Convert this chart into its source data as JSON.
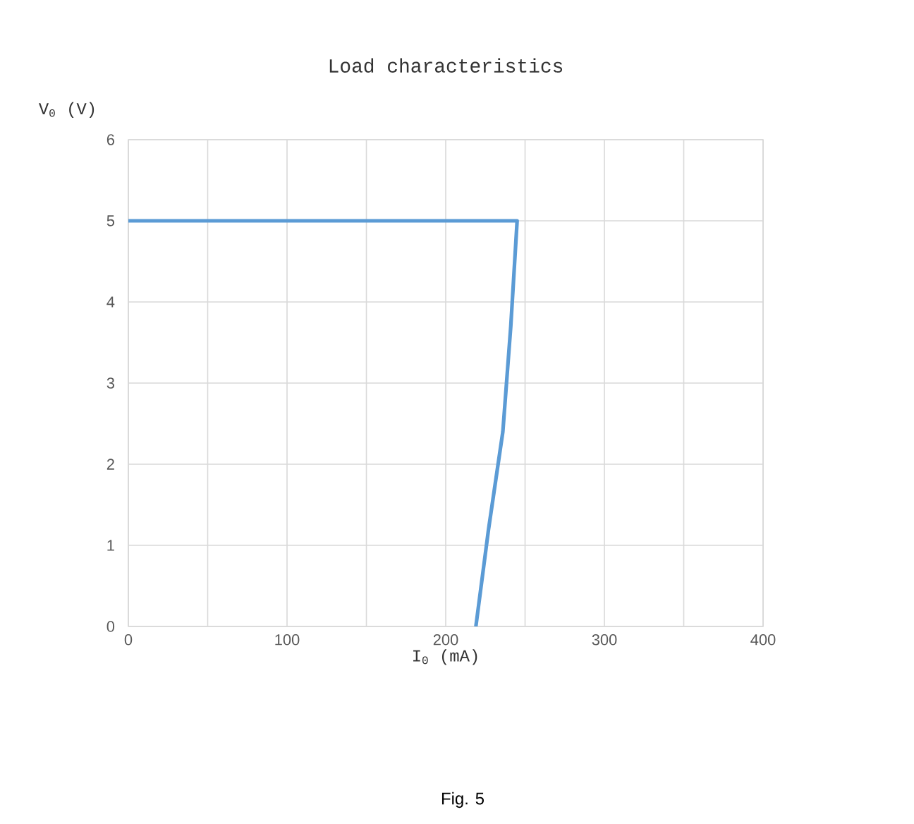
{
  "chart_data": {
    "type": "line",
    "title": "Load characteristics",
    "xlabel": "I$_{0}$ (mA)",
    "ylabel": "V$_{0}$ (V)",
    "series": [
      {
        "color": "#5b9bd5",
        "x": [
          0,
          245,
          241,
          236,
          227,
          219
        ],
        "values": [
          5,
          5,
          3.7,
          2.4,
          1.2,
          0
        ]
      }
    ],
    "xlim": [
      0,
      400
    ],
    "ylim": [
      0,
      6
    ],
    "xticks": [
      0,
      {
        "value": 50,
        "label": null
      },
      100,
      {
        "value": 150,
        "label": null
      },
      200,
      {
        "value": 250,
        "label": null
      },
      300,
      {
        "value": 350,
        "label": null
      },
      400
    ],
    "yticks": [
      0,
      1,
      2,
      3,
      4,
      5,
      6
    ],
    "grid": true,
    "marker": "none",
    "line_style": "solid",
    "annotations": [
      "Fig. 5"
    ]
  }
}
